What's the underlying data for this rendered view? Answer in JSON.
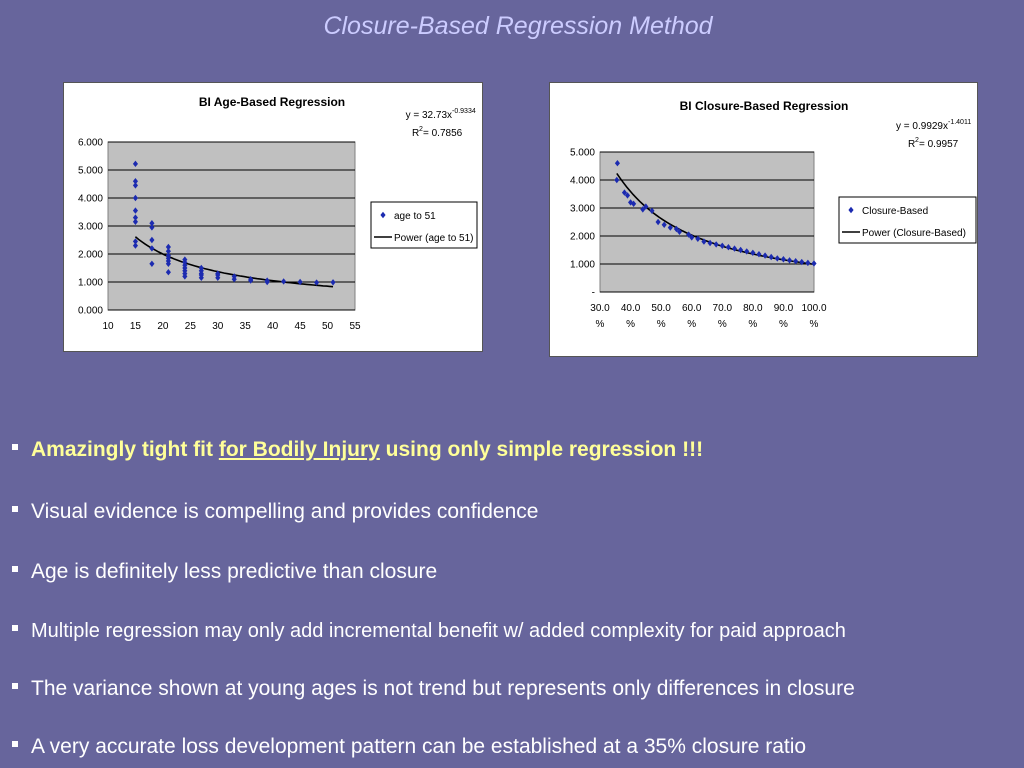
{
  "slide": {
    "title": "Closure-Based Regression Method"
  },
  "chart_data": [
    {
      "type": "scatter",
      "title": "BI Age-Based Regression",
      "equation": "y = 32.73x",
      "exponent": "-0.9334",
      "r2_label": "R",
      "r2_value": " = 0.7856",
      "xlim": [
        10,
        55
      ],
      "ylim": [
        0,
        6
      ],
      "x_ticks": [
        "10",
        "15",
        "20",
        "25",
        "30",
        "35",
        "40",
        "45",
        "50",
        "55"
      ],
      "y_ticks": [
        "0.000",
        "1.000",
        "2.000",
        "3.000",
        "4.000",
        "5.000",
        "6.000"
      ],
      "legend": [
        "age to 51",
        "Power (age to 51)"
      ],
      "legend_position": "right",
      "grid": true,
      "marker_color": "#1c2bb0",
      "trend": {
        "a": 32.73,
        "b": -0.9334,
        "x_from": 15,
        "x_to": 51
      },
      "series": [
        {
          "name": "age to 51",
          "points": [
            [
              15,
              5.22
            ],
            [
              15,
              4.6
            ],
            [
              15,
              4.45
            ],
            [
              15,
              4.0
            ],
            [
              15,
              3.55
            ],
            [
              15,
              3.3
            ],
            [
              15,
              3.15
            ],
            [
              15,
              2.45
            ],
            [
              15,
              2.3
            ],
            [
              18,
              3.1
            ],
            [
              18,
              2.95
            ],
            [
              18,
              2.5
            ],
            [
              18,
              2.2
            ],
            [
              18,
              1.65
            ],
            [
              21,
              2.25
            ],
            [
              21,
              2.1
            ],
            [
              21,
              1.95
            ],
            [
              21,
              1.85
            ],
            [
              21,
              1.75
            ],
            [
              21,
              1.65
            ],
            [
              21,
              1.35
            ],
            [
              24,
              1.8
            ],
            [
              24,
              1.7
            ],
            [
              24,
              1.6
            ],
            [
              24,
              1.5
            ],
            [
              24,
              1.4
            ],
            [
              24,
              1.3
            ],
            [
              24,
              1.2
            ],
            [
              27,
              1.5
            ],
            [
              27,
              1.4
            ],
            [
              27,
              1.3
            ],
            [
              27,
              1.25
            ],
            [
              27,
              1.15
            ],
            [
              30,
              1.3
            ],
            [
              30,
              1.25
            ],
            [
              30,
              1.15
            ],
            [
              33,
              1.2
            ],
            [
              33,
              1.1
            ],
            [
              36,
              1.1
            ],
            [
              36,
              1.05
            ],
            [
              39,
              1.05
            ],
            [
              39,
              1.0
            ],
            [
              42,
              1.02
            ],
            [
              45,
              1.0
            ],
            [
              48,
              0.98
            ],
            [
              51,
              0.99
            ]
          ]
        }
      ]
    },
    {
      "type": "scatter",
      "title": "BI Closure-Based Regression",
      "equation": "y = 0.9929x",
      "exponent": "-1.4011",
      "r2_label": "R",
      "r2_value": " = 0.9957",
      "xlim": [
        0.3,
        1.0
      ],
      "ylim": [
        0,
        5
      ],
      "x_ticks": [
        "30.0",
        "40.0",
        "50.0",
        "60.0",
        "70.0",
        "80.0",
        "90.0",
        "100.0"
      ],
      "x_tick_unit": "%",
      "y_ticks": [
        "-",
        "1.000",
        "2.000",
        "3.000",
        "4.000",
        "5.000"
      ],
      "legend": [
        "Closure-Based",
        "Power (Closure-Based)"
      ],
      "legend_position": "right",
      "grid": true,
      "marker_color": "#1c2bb0",
      "trend": {
        "a": 0.9929,
        "b": -1.4011,
        "x_from": 0.355,
        "x_to": 1.0
      },
      "series": [
        {
          "name": "Closure-Based",
          "points": [
            [
              0.357,
              4.6
            ],
            [
              0.355,
              4.0
            ],
            [
              0.38,
              3.55
            ],
            [
              0.39,
              3.45
            ],
            [
              0.4,
              3.2
            ],
            [
              0.41,
              3.15
            ],
            [
              0.44,
              2.95
            ],
            [
              0.45,
              3.05
            ],
            [
              0.47,
              2.9
            ],
            [
              0.49,
              2.5
            ],
            [
              0.51,
              2.4
            ],
            [
              0.53,
              2.3
            ],
            [
              0.55,
              2.25
            ],
            [
              0.56,
              2.15
            ],
            [
              0.59,
              2.05
            ],
            [
              0.6,
              1.95
            ],
            [
              0.62,
              1.9
            ],
            [
              0.64,
              1.8
            ],
            [
              0.66,
              1.75
            ],
            [
              0.68,
              1.7
            ],
            [
              0.7,
              1.65
            ],
            [
              0.72,
              1.6
            ],
            [
              0.74,
              1.55
            ],
            [
              0.76,
              1.5
            ],
            [
              0.78,
              1.45
            ],
            [
              0.8,
              1.4
            ],
            [
              0.82,
              1.35
            ],
            [
              0.84,
              1.3
            ],
            [
              0.86,
              1.25
            ],
            [
              0.88,
              1.2
            ],
            [
              0.9,
              1.17
            ],
            [
              0.92,
              1.13
            ],
            [
              0.94,
              1.1
            ],
            [
              0.96,
              1.07
            ],
            [
              0.98,
              1.04
            ],
            [
              1.0,
              1.02
            ]
          ]
        }
      ]
    }
  ],
  "bullets": [
    {
      "pre": "Amazingly tight fit ",
      "link": "for Bodily Injury",
      "post": " using only simple regression !!!"
    },
    {
      "text": "Visual evidence is compelling and provides confidence"
    },
    {
      "text": "Age is definitely less predictive than closure"
    },
    {
      "text": "Multiple regression may only add incremental benefit w/ added complexity for paid approach"
    },
    {
      "text": "The variance shown at young ages is not trend but represents only differences in closure"
    },
    {
      "text": "A very accurate loss development pattern can be established at a 35% closure ratio"
    }
  ]
}
